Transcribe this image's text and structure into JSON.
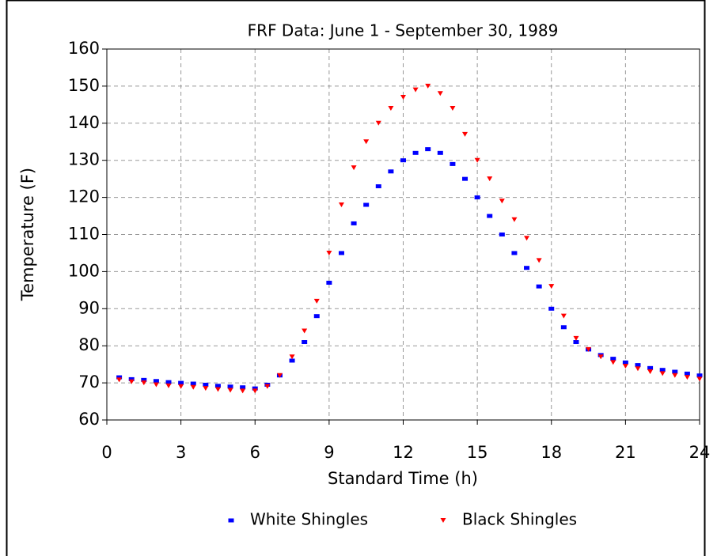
{
  "chart_data": {
    "type": "scatter",
    "title": "FRF Data: June 1 - September 30, 1989",
    "x_label": "Standard Time (h)",
    "y_label": "Temperature (F)",
    "x": [
      0.5,
      1,
      1.5,
      2,
      2.5,
      3,
      3.5,
      4,
      4.5,
      5,
      5.5,
      6,
      6.5,
      7,
      7.5,
      8,
      8.5,
      9,
      9.5,
      10,
      10.5,
      11,
      11.5,
      12,
      12.5,
      13,
      13.5,
      14,
      14.5,
      15,
      15.5,
      16,
      16.5,
      17,
      17.5,
      18,
      18.5,
      19,
      19.5,
      20,
      20.5,
      21,
      21.5,
      22,
      22.5,
      23,
      23.5,
      24
    ],
    "series": [
      {
        "name": "White Shingles",
        "color": "#0000ff",
        "marker": "square",
        "values": [
          71.5,
          71,
          70.8,
          70.5,
          70.2,
          70,
          69.8,
          69.5,
          69.2,
          69,
          68.8,
          68.5,
          69.5,
          72,
          76,
          81,
          88,
          97,
          105,
          113,
          118,
          123,
          127,
          130,
          132,
          133,
          132,
          129,
          125,
          120,
          115,
          110,
          105,
          101,
          96,
          90,
          85,
          81,
          79,
          77.5,
          76.5,
          75.5,
          74.8,
          74,
          73.5,
          73,
          72.5,
          72
        ]
      },
      {
        "name": "Black Shingles",
        "color": "#ff0000",
        "marker": "triangle-down",
        "values": [
          70.8,
          70.3,
          70,
          69.5,
          69.2,
          69,
          68.8,
          68.5,
          68.2,
          68,
          67.8,
          67.8,
          69,
          72,
          77,
          84,
          92,
          105,
          118,
          128,
          135,
          140,
          144,
          147,
          149,
          150,
          148,
          144,
          137,
          130,
          125,
          119,
          114,
          109,
          103,
          96,
          88,
          82,
          79,
          77,
          75.5,
          74.5,
          73.8,
          73,
          72.5,
          72,
          71.5,
          71
        ]
      }
    ],
    "xlim": [
      0,
      24
    ],
    "xticks": [
      0,
      3,
      6,
      9,
      12,
      15,
      18,
      21,
      24
    ],
    "ylim": [
      60,
      160
    ],
    "yticks": [
      60,
      70,
      80,
      90,
      100,
      110,
      120,
      130,
      140,
      150,
      160
    ],
    "grid": true,
    "legend": "bottom"
  }
}
